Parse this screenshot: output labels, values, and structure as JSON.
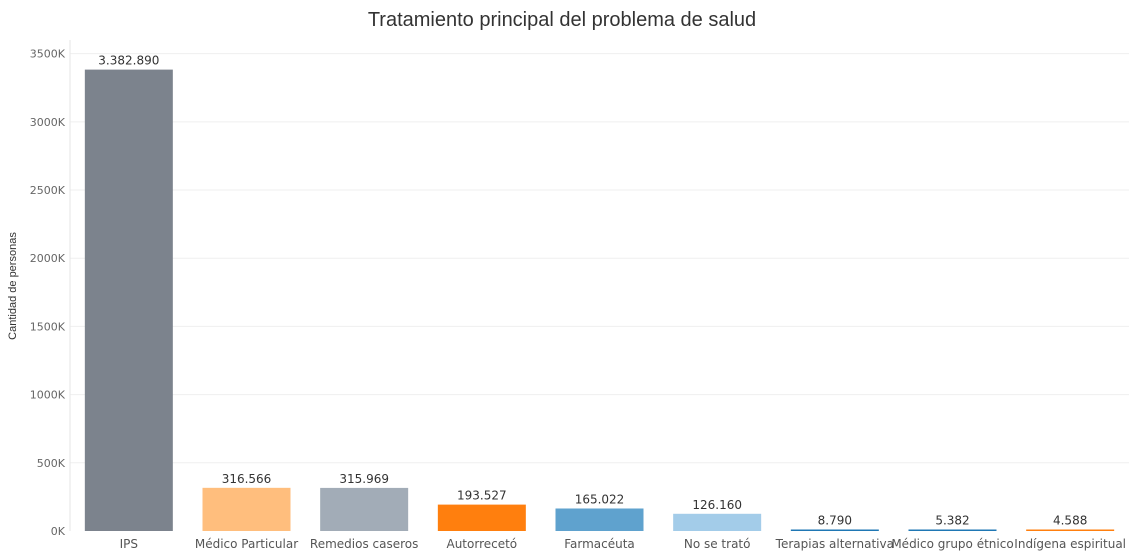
{
  "chart_data": {
    "type": "bar",
    "title": "Tratamiento principal del problema de salud",
    "xlabel": "",
    "ylabel": "Cantidad de personas",
    "ylim": [
      0,
      3600000
    ],
    "y_ticks": [
      0,
      500000,
      1000000,
      1500000,
      2000000,
      2500000,
      3000000,
      3500000
    ],
    "y_tick_labels": [
      "0K",
      "500K",
      "1000K",
      "1500K",
      "2000K",
      "2500K",
      "3000K",
      "3500K"
    ],
    "grid": true,
    "legend": "none",
    "categories": [
      "IPS",
      "Médico Particular",
      "Remedios caseros",
      "Autorrecetó",
      "Farmacéuta",
      "No se trató",
      "Terapias alternativa",
      "Médico grupo étnico",
      "Indígena espiritual"
    ],
    "values": [
      3382890,
      316566,
      315969,
      193527,
      165022,
      126160,
      8790,
      5382,
      4588
    ],
    "value_labels": [
      "3.382.890",
      "316.566",
      "315.969",
      "193.527",
      "165.022",
      "126.160",
      "8.790",
      "5.382",
      "4.588"
    ],
    "colors": [
      "#7c838d",
      "#ffbe7d",
      "#a2acb7",
      "#ff7f0e",
      "#5fa2ce",
      "#a3cce9",
      "#1f77b4",
      "#1f77b4",
      "#ff7f0e"
    ]
  }
}
